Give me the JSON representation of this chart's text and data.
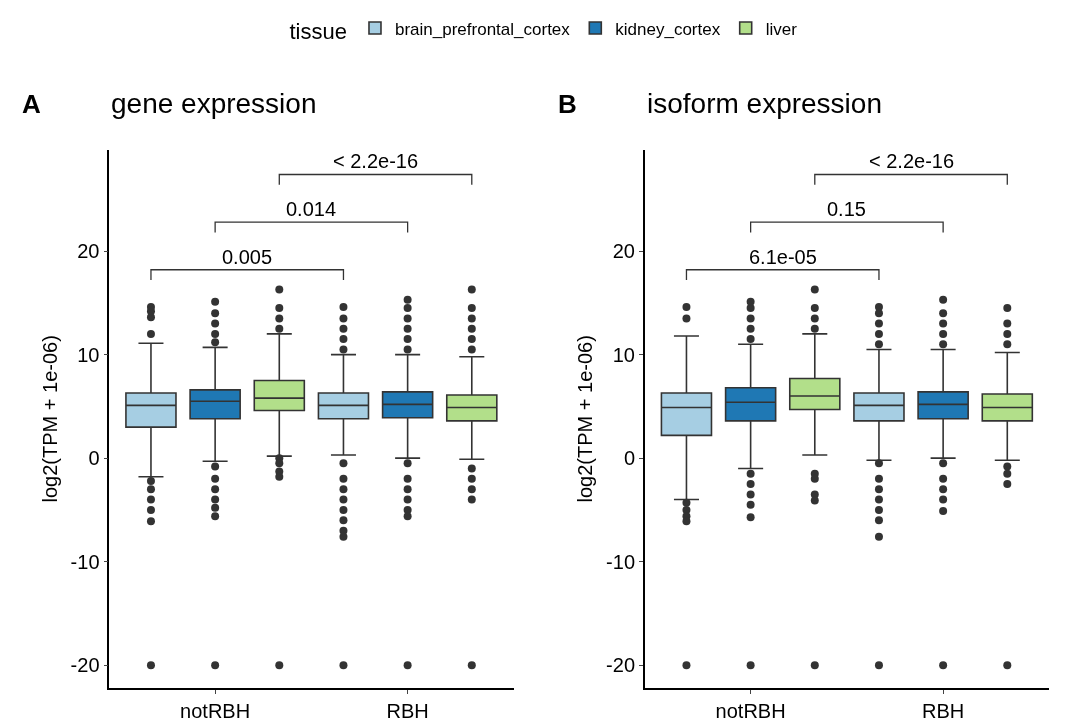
{
  "chart_data": [
    {
      "type": "box",
      "title": "gene expression",
      "ylabel": "log2(TPM + 1e-06)",
      "legend_title": "tissue",
      "legend": "top",
      "grid": false,
      "categories": [
        "notRBH",
        "RBH"
      ],
      "ylim": [
        -22.2,
        29.8
      ],
      "yticks": [
        -20,
        -10,
        0,
        10,
        20
      ],
      "annotations": [
        "A",
        "0.005",
        "0.014",
        "< 2.2e-16"
      ],
      "series": [
        {
          "name": "brain_prefrontal_cortex",
          "color": "#a6cee3",
          "boxes": [
            {
              "low": -1.8,
              "q1": 3.0,
              "median": 5.1,
              "q3": 6.3,
              "high": 11.1,
              "outliers": [
                -2.2,
                -3,
                -4,
                -5,
                -6.1,
                -20,
                12,
                13.6,
                14.2,
                14.6
              ]
            },
            {
              "low": 0.3,
              "q1": 3.8,
              "median": 5.1,
              "q3": 6.3,
              "high": 10,
              "outliers": [
                -0.5,
                -2,
                -3,
                -4,
                -5,
                -6,
                -7,
                -7.6,
                -20,
                10.5,
                11.5,
                12.5,
                13.5,
                14.6
              ]
            }
          ]
        },
        {
          "name": "kidney_cortex",
          "color": "#1f78b4",
          "boxes": [
            {
              "low": -0.3,
              "q1": 3.8,
              "median": 5.5,
              "q3": 6.6,
              "high": 10.7,
              "outliers": [
                -0.8,
                -2,
                -3,
                -4,
                -4.8,
                -5.6,
                -20,
                11.2,
                12,
                13,
                14,
                15.1
              ]
            },
            {
              "low": 0,
              "q1": 3.9,
              "median": 5.2,
              "q3": 6.4,
              "high": 10,
              "outliers": [
                -0.5,
                -2,
                -3,
                -4,
                -5,
                -5.6,
                -20,
                10.5,
                11.5,
                12.5,
                13.5,
                14.5,
                15.3
              ]
            }
          ]
        },
        {
          "name": "liver",
          "color": "#b2df8a",
          "boxes": [
            {
              "low": 0.2,
              "q1": 4.6,
              "median": 5.8,
              "q3": 7.5,
              "high": 12,
              "outliers": [
                0,
                -0.5,
                -1.3,
                -1.8,
                -20,
                12.5,
                13.5,
                14.5,
                16.3
              ]
            },
            {
              "low": -0.1,
              "q1": 3.6,
              "median": 4.9,
              "q3": 6.1,
              "high": 9.8,
              "outliers": [
                -1,
                -2,
                -3,
                -4,
                -20,
                10.5,
                11.5,
                12.5,
                13.5,
                14.5,
                16.3
              ]
            }
          ]
        }
      ]
    },
    {
      "type": "box",
      "title": "isoform expression",
      "ylabel": "log2(TPM + 1e-06)",
      "grid": false,
      "categories": [
        "notRBH",
        "RBH"
      ],
      "ylim": [
        -22.2,
        29.8
      ],
      "yticks": [
        -20,
        -10,
        0,
        10,
        20
      ],
      "annotations": [
        "B",
        "6.1e-05",
        "0.15",
        "< 2.2e-16"
      ],
      "series": [
        {
          "color": "#a6cee3",
          "boxes": [
            {
              "low": -4,
              "q1": 2.2,
              "median": 4.9,
              "q3": 6.3,
              "high": 11.8,
              "outliers": [
                -4.3,
                -5,
                -5.6,
                -6.1,
                -20,
                13.5,
                14.6
              ]
            },
            {
              "low": -0.2,
              "q1": 3.6,
              "median": 5.1,
              "q3": 6.3,
              "high": 10.5,
              "outliers": [
                -0.5,
                -2,
                -3,
                -4,
                -5,
                -6,
                -7.6,
                -20,
                11,
                12,
                13,
                14,
                14.6
              ]
            }
          ]
        },
        {
          "color": "#1f78b4",
          "boxes": [
            {
              "low": -1,
              "q1": 3.6,
              "median": 5.4,
              "q3": 6.8,
              "high": 11,
              "outliers": [
                -1.5,
                -2.5,
                -3.5,
                -4.5,
                -5.7,
                -20,
                11.5,
                12.5,
                13.5,
                14.5,
                15.1
              ]
            },
            {
              "low": 0,
              "q1": 3.8,
              "median": 5.2,
              "q3": 6.4,
              "high": 10.5,
              "outliers": [
                -0.5,
                -2,
                -3,
                -4,
                -5.1,
                -20,
                11,
                12,
                13,
                14,
                15.3
              ]
            }
          ]
        },
        {
          "color": "#b2df8a",
          "boxes": [
            {
              "low": 0.3,
              "q1": 4.7,
              "median": 6.0,
              "q3": 7.7,
              "high": 12,
              "outliers": [
                -1.5,
                -2,
                -3.5,
                -4.1,
                -20,
                12.5,
                13.5,
                14.5,
                16.3
              ]
            },
            {
              "low": -0.2,
              "q1": 3.6,
              "median": 4.9,
              "q3": 6.2,
              "high": 10.2,
              "outliers": [
                -0.8,
                -1.5,
                -2.5,
                -20,
                11,
                12,
                13,
                14.5
              ]
            }
          ]
        }
      ]
    }
  ]
}
